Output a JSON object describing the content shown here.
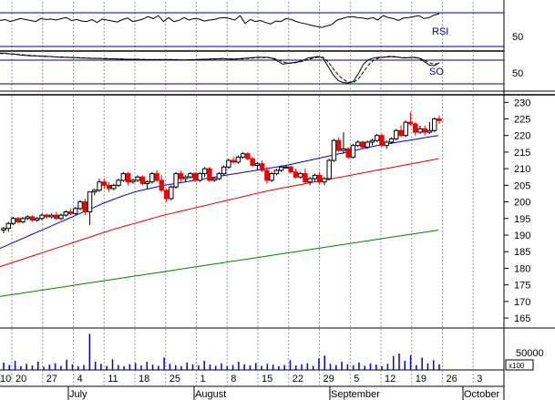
{
  "colors": {
    "background": "#ffffff",
    "frame": "#000000",
    "grid": "#999999",
    "up_candle": "#000000",
    "down_candle": "#ee0000",
    "ma_short": "#0000cc",
    "ma_mid": "#dd0000",
    "ma_long": "#008000",
    "volume": "#0000cc",
    "osc_band": "#00008b"
  },
  "panels": {
    "rsi": {
      "label": "RSI",
      "tick_label": "50"
    },
    "so": {
      "label": "SO",
      "tick_label": "50"
    },
    "volume": {
      "tick_label": "50000",
      "multiplier_label": "x100"
    }
  },
  "chart_data": [
    {
      "type": "line",
      "title": "RSI",
      "ylim": [
        0,
        100
      ],
      "reference_lines": [
        70,
        30
      ],
      "series": [
        {
          "name": "RSI",
          "values": [
            62,
            64,
            60,
            63,
            66,
            64,
            62,
            60,
            66,
            64,
            65,
            63,
            66,
            68,
            62,
            64,
            61,
            60,
            64,
            58,
            65,
            63,
            61,
            59,
            64,
            67,
            60,
            62,
            65,
            70,
            66,
            72,
            60,
            68,
            60,
            62,
            68,
            63,
            66,
            65,
            61,
            63,
            64,
            67,
            68,
            66,
            63,
            72,
            56,
            64,
            60,
            62,
            58,
            55,
            61,
            60,
            66,
            64,
            60,
            57,
            55,
            52,
            50,
            48,
            51,
            54,
            63,
            66,
            69,
            70,
            68,
            67,
            65,
            68,
            63,
            72,
            68,
            66,
            62,
            67,
            68,
            70,
            72,
            66,
            68,
            73,
            76
          ]
        }
      ]
    },
    {
      "type": "line",
      "title": "SO",
      "ylim": [
        0,
        100
      ],
      "reference_lines": [
        80,
        20
      ],
      "series": [
        {
          "name": "%K",
          "values": [
            97,
            97,
            95,
            94,
            92,
            91,
            90,
            90,
            89,
            88,
            88,
            87,
            86,
            86,
            85,
            85,
            84,
            84,
            83,
            83,
            83,
            82,
            82,
            82,
            81,
            81,
            81,
            81,
            80,
            80,
            80,
            80,
            80,
            80,
            80,
            79,
            79,
            79,
            80,
            80,
            81,
            81,
            82,
            82,
            83,
            82,
            81,
            82,
            83,
            84,
            85,
            86,
            86,
            86,
            83,
            76,
            68,
            70,
            72,
            74,
            78,
            84,
            86,
            88,
            84,
            62,
            40,
            25,
            20,
            19,
            23,
            44,
            68,
            80,
            84,
            86,
            86,
            88,
            88,
            86,
            84,
            85,
            86,
            84,
            75,
            66,
            64,
            72
          ]
        },
        {
          "name": "%D",
          "values": [
            96,
            96,
            95,
            94,
            93,
            92,
            91,
            90,
            89,
            89,
            88,
            87,
            87,
            86,
            86,
            85,
            85,
            84,
            84,
            83,
            83,
            83,
            82,
            82,
            82,
            81,
            81,
            81,
            81,
            80,
            80,
            80,
            80,
            80,
            80,
            80,
            79,
            79,
            79,
            80,
            80,
            81,
            81,
            82,
            82,
            82,
            82,
            82,
            82,
            83,
            84,
            85,
            85,
            85,
            84,
            80,
            74,
            71,
            71,
            73,
            76,
            80,
            84,
            86,
            86,
            74,
            56,
            40,
            28,
            21,
            20,
            30,
            48,
            66,
            78,
            84,
            86,
            87,
            87,
            86,
            85,
            85,
            85,
            84,
            78,
            72,
            68,
            70
          ]
        }
      ]
    },
    {
      "type": "candlestick",
      "ylim": [
        162,
        232
      ],
      "y_ticks": [
        165,
        170,
        175,
        180,
        185,
        190,
        195,
        200,
        205,
        210,
        215,
        220,
        225,
        230
      ],
      "grid": true,
      "ohlc": [
        [
          191.5,
          192.5,
          190.5,
          192
        ],
        [
          192,
          194,
          191,
          193.5
        ],
        [
          193.5,
          195.5,
          193,
          195
        ],
        [
          195,
          195.5,
          193.5,
          194
        ],
        [
          194,
          195.5,
          193.5,
          195
        ],
        [
          195,
          196,
          194.5,
          195.5
        ],
        [
          195.5,
          196,
          194,
          194.5
        ],
        [
          194.5,
          195.5,
          194,
          195
        ],
        [
          195,
          196.5,
          194.5,
          196
        ],
        [
          196,
          196.5,
          195,
          195.5
        ],
        [
          195.5,
          196.5,
          195,
          196
        ],
        [
          196,
          197,
          194.5,
          195
        ],
        [
          195,
          196.5,
          194.5,
          196
        ],
        [
          196,
          197.5,
          195.5,
          197
        ],
        [
          197,
          198,
          196,
          196.5
        ],
        [
          196.5,
          198.5,
          196,
          198
        ],
        [
          198,
          200.5,
          197.5,
          200
        ],
        [
          200,
          201,
          196,
          197
        ],
        [
          197,
          203,
          193,
          203
        ],
        [
          203,
          204,
          202,
          203.5
        ],
        [
          203.5,
          207,
          203,
          206
        ],
        [
          206,
          207,
          204,
          205
        ],
        [
          205,
          206,
          203,
          204
        ],
        [
          204,
          205.5,
          203.5,
          205
        ],
        [
          205,
          207,
          204.5,
          206.5
        ],
        [
          206.5,
          209,
          206,
          208.5
        ],
        [
          208.5,
          209,
          205,
          206
        ],
        [
          206,
          207,
          205.5,
          206.5
        ],
        [
          206.5,
          208,
          206,
          207.5
        ],
        [
          207.5,
          208,
          205,
          205.5
        ],
        [
          205.5,
          206.5,
          204,
          206
        ],
        [
          206,
          209,
          205.5,
          208.5
        ],
        [
          208.5,
          209.5,
          206,
          206.5
        ],
        [
          206.5,
          208,
          203,
          203.5
        ],
        [
          203.5,
          204,
          200,
          201
        ],
        [
          201,
          205,
          200.5,
          204.5
        ],
        [
          204.5,
          209,
          204,
          208.5
        ],
        [
          208.5,
          209.5,
          206,
          207
        ],
        [
          207,
          208,
          206,
          207.5
        ],
        [
          207.5,
          209,
          207,
          208.5
        ],
        [
          208.5,
          209,
          206,
          206.5
        ],
        [
          206.5,
          209,
          206,
          208.5
        ],
        [
          208.5,
          210.5,
          207.5,
          210
        ],
        [
          210,
          210.5,
          206,
          206.5
        ],
        [
          206.5,
          207.5,
          206,
          207
        ],
        [
          207,
          209,
          206.5,
          208.5
        ],
        [
          208.5,
          211,
          208,
          210.5
        ],
        [
          210.5,
          213,
          210,
          212.5
        ],
        [
          212.5,
          213.5,
          211.5,
          212
        ],
        [
          212,
          214,
          211.5,
          213.5
        ],
        [
          213.5,
          215,
          213,
          214.5
        ],
        [
          214.5,
          215,
          212.5,
          213
        ],
        [
          213,
          213.5,
          210.5,
          211
        ],
        [
          211,
          212,
          209.5,
          211.5
        ],
        [
          211.5,
          212.5,
          209,
          209.5
        ],
        [
          209.5,
          210.5,
          205.5,
          206.5
        ],
        [
          206.5,
          209,
          206,
          208.5
        ],
        [
          208.5,
          210,
          208,
          209.5
        ],
        [
          209.5,
          211,
          209,
          210.5
        ],
        [
          210.5,
          211,
          210,
          210.5
        ],
        [
          210.5,
          211,
          208.5,
          209
        ],
        [
          209,
          210,
          207,
          207.5
        ],
        [
          207.5,
          209,
          207,
          208.5
        ],
        [
          208.5,
          210,
          205.5,
          206
        ],
        [
          206,
          207.5,
          205,
          207
        ],
        [
          207,
          208.5,
          206,
          208
        ],
        [
          208,
          209,
          205.5,
          206
        ],
        [
          206,
          207.5,
          205,
          207
        ],
        [
          207,
          213,
          206.5,
          212.5
        ],
        [
          212.5,
          219,
          212,
          218.5
        ],
        [
          218.5,
          219.5,
          215,
          215.5
        ],
        [
          215.5,
          221,
          214.5,
          216
        ],
        [
          216,
          216.5,
          213,
          213.5
        ],
        [
          213.5,
          217.5,
          213,
          217
        ],
        [
          217,
          218.5,
          216.5,
          218
        ],
        [
          218,
          218.5,
          216,
          216.5
        ],
        [
          216.5,
          218.5,
          216,
          218
        ],
        [
          218,
          219,
          217,
          218.5
        ],
        [
          218.5,
          220.5,
          218,
          220
        ],
        [
          220,
          220.5,
          216.5,
          217
        ],
        [
          217,
          218.5,
          216,
          218
        ],
        [
          218,
          219.5,
          217.5,
          219
        ],
        [
          219,
          222,
          218.5,
          221.5
        ],
        [
          221.5,
          223,
          219.5,
          220
        ],
        [
          220,
          224.5,
          219.5,
          224
        ],
        [
          224,
          227,
          223,
          223.5
        ],
        [
          223.5,
          224,
          220,
          221
        ],
        [
          221,
          223,
          220.5,
          222
        ],
        [
          222,
          223,
          220,
          221
        ],
        [
          221,
          224,
          220.5,
          221.5
        ],
        [
          221.5,
          225.5,
          221,
          225
        ],
        [
          225,
          226,
          223.5,
          224.5
        ]
      ],
      "series": [
        {
          "name": "MA short",
          "values": [
            186,
            186.8,
            187.6,
            188.4,
            189.2,
            190,
            190.8,
            191.6,
            192.4,
            193.2,
            194,
            194.8,
            195.6,
            196.4,
            197.2,
            198,
            198.8,
            199.6,
            200.3,
            201,
            201.7,
            202.3,
            202.9,
            203.4,
            203.8,
            204.2,
            204.6,
            205,
            205.3,
            205.6,
            205.9,
            206.2,
            206.5,
            206.8,
            207.1,
            207.4,
            207.7,
            208,
            208.3,
            208.6,
            208.9,
            209.2,
            209.5,
            209.8,
            210.1,
            210.4,
            210.7,
            211,
            211.4,
            211.8,
            212.2,
            212.6,
            213,
            213.4,
            213.8,
            214.2,
            214.6,
            215,
            215.4,
            215.8,
            216.2,
            216.6,
            217,
            217.3,
            217.6,
            217.9,
            218.2,
            218.5,
            218.8,
            219.1,
            219.4,
            219.7,
            220
          ]
        },
        {
          "name": "MA mid",
          "values": [
            180.5,
            181.2,
            181.9,
            182.6,
            183.3,
            184,
            184.7,
            185.4,
            186.1,
            186.8,
            187.5,
            188.2,
            188.9,
            189.6,
            190.3,
            191,
            191.7,
            192.3,
            192.9,
            193.5,
            194.1,
            194.7,
            195.3,
            195.9,
            196.4,
            196.9,
            197.4,
            197.9,
            198.4,
            198.9,
            199.4,
            199.9,
            200.4,
            200.9,
            201.4,
            201.9,
            202.4,
            202.9,
            203.4,
            203.8,
            204.2,
            204.6,
            205,
            205.4,
            205.8,
            206.2,
            206.6,
            207,
            207.4,
            207.8,
            208.2,
            208.6,
            209,
            209.4,
            209.8,
            210.2,
            210.6,
            211,
            211.4,
            211.8,
            212.2,
            212.6,
            213
          ]
        },
        {
          "name": "MA long",
          "values": [
            171.5,
            171.9,
            172.3,
            172.7,
            173.1,
            173.5,
            173.9,
            174.3,
            174.7,
            175.1,
            175.5,
            175.9,
            176.3,
            176.7,
            177.1,
            177.5,
            177.9,
            178.3,
            178.7,
            179.1,
            179.5,
            179.9,
            180.3,
            180.7,
            181.1,
            181.5,
            181.9,
            182.3,
            182.7,
            183.1,
            183.5,
            183.9,
            184.3,
            184.7,
            185.1,
            185.5,
            185.9,
            186.3,
            186.7,
            187.1,
            187.5,
            187.9,
            188.3,
            188.7,
            189.1,
            189.5,
            189.9,
            190.3,
            190.7,
            191.1,
            191.5
          ]
        }
      ]
    },
    {
      "type": "bar",
      "title": "Volume",
      "ylim": [
        0,
        100000
      ],
      "values": [
        18000,
        12000,
        22000,
        9000,
        15000,
        11000,
        20000,
        8000,
        13000,
        16000,
        10000,
        25000,
        14000,
        9000,
        12000,
        88000,
        20000,
        15000,
        10000,
        26000,
        12000,
        9000,
        14000,
        17000,
        11000,
        20000,
        13000,
        10000,
        30000,
        15000,
        12000,
        9000,
        18000,
        14000,
        11000,
        22000,
        13000,
        10000,
        16000,
        9000,
        12000,
        20000,
        14000,
        11000,
        17000,
        10000,
        15000,
        13000,
        9000,
        12000,
        24000,
        11000,
        14000,
        16000,
        10000,
        28000,
        35000,
        15000,
        12000,
        20000,
        14000,
        11000,
        18000,
        10000,
        16000,
        13000,
        9000,
        15000,
        34000,
        40000,
        22000,
        36000,
        12000,
        30000,
        16000,
        24000,
        14000
      ]
    },
    {
      "type": "axis",
      "x_day_labels": [
        "20",
        "27",
        "4",
        "11",
        "18",
        "25",
        "1",
        "8",
        "15",
        "22",
        "29",
        "5",
        "12",
        "19",
        "26",
        "3",
        "10"
      ],
      "x_month_labels": [
        "July",
        "August",
        "September",
        "October"
      ]
    }
  ]
}
